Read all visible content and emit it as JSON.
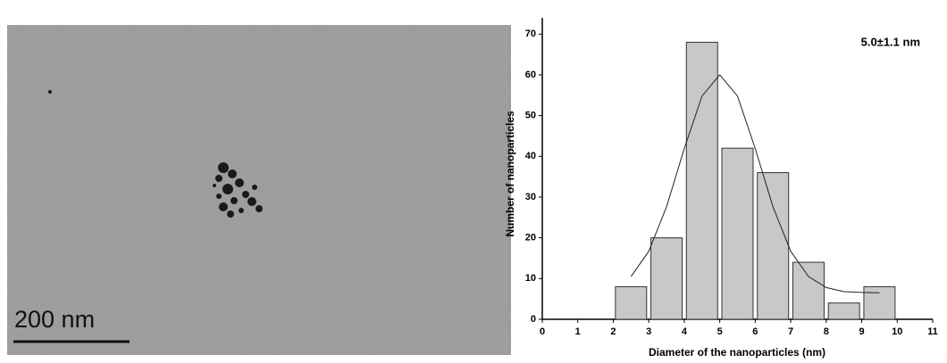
{
  "image": {
    "scale_label": "200 nm"
  },
  "chart_data": {
    "type": "histogram",
    "annotation": "5.0±1.1 nm",
    "x_label": "Diameter of the nanoparticles (nm)",
    "y_label": "Number of nanoparticles",
    "bins": [
      2,
      3,
      4,
      5,
      6,
      7,
      8,
      9,
      10
    ],
    "counts": [
      8,
      20,
      68,
      42,
      36,
      14,
      4,
      8
    ],
    "color": "#c8c8c8",
    "fit_curve": {
      "x": [
        2.5,
        3,
        3.5,
        4,
        4.5,
        5,
        5.5,
        6,
        6.5,
        7,
        7.5,
        8,
        8.5,
        9,
        9.5
      ],
      "values": [
        10.5,
        16.7,
        27.6,
        41.9,
        54.8,
        60,
        54.8,
        41.9,
        27.6,
        16.7,
        10.5,
        7.8,
        6.8,
        6.6,
        6.5
      ],
      "color": "#222222"
    },
    "xlim": [
      0,
      11
    ],
    "xticks": [
      0,
      1,
      2,
      3,
      4,
      5,
      6,
      7,
      8,
      9,
      10,
      11
    ],
    "ylim": [
      0,
      74
    ],
    "yticks": [
      0,
      10,
      20,
      30,
      40,
      50,
      60,
      70
    ]
  }
}
